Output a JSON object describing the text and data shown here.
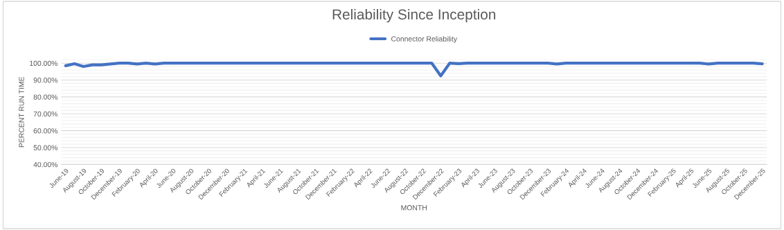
{
  "chart_data": {
    "type": "line",
    "title": "Reliability Since Inception",
    "xlabel": "MONTH",
    "ylabel": "PERCENT RUN TIME",
    "categories": [
      "June-19",
      null,
      "August-19",
      null,
      "October-19",
      null,
      "December-19",
      null,
      "February-20",
      null,
      "April-20",
      null,
      "June-20",
      null,
      "August-20",
      null,
      "October-20",
      null,
      "December-20",
      null,
      "February-21",
      null,
      "April-21",
      null,
      "June-21",
      null,
      "August-21",
      null,
      "October-21",
      null,
      "December-21",
      null,
      "February-22",
      null,
      "April-22",
      null,
      "June-22",
      null,
      "August-22",
      null,
      "October-22",
      null,
      "December-22",
      null,
      "February-23",
      null,
      "April-23",
      null,
      "June-23",
      null,
      "August-23",
      null,
      "October-23",
      null,
      "December-23",
      null,
      "February-24",
      null,
      "April-24",
      null,
      "June-24",
      null,
      "August-24",
      null,
      "October-24",
      null,
      "December-24",
      null,
      "February-25",
      null,
      "April-25",
      null,
      "June-25",
      null,
      "August-25",
      null,
      "October-25",
      null,
      "December-25"
    ],
    "series": [
      {
        "name": "Connector Reliability",
        "color": "#4472c4",
        "values": [
          98.5,
          99.7,
          98,
          99,
          99,
          99.5,
          100,
          100,
          99.5,
          100,
          99.5,
          100,
          100,
          100,
          100,
          100,
          100,
          100,
          100,
          100,
          100,
          100,
          100,
          100,
          100,
          100,
          100,
          100,
          100,
          100,
          100,
          100,
          100,
          100,
          100,
          100,
          100,
          100,
          100,
          100,
          100,
          100,
          92.5,
          100,
          99.7,
          100,
          100,
          100,
          100,
          100,
          100,
          100,
          100,
          100,
          100,
          99.5,
          100,
          100,
          100,
          100,
          100,
          100,
          100,
          100,
          100,
          100,
          100,
          100,
          100,
          100,
          100,
          100,
          99.5,
          100,
          100,
          100,
          100,
          100,
          99.6
        ]
      }
    ],
    "ylim": [
      40,
      102
    ],
    "yticks": [
      {
        "value": 40,
        "label": "40.00%"
      },
      {
        "value": 42,
        "label": null
      },
      {
        "value": 44,
        "label": null
      },
      {
        "value": 46,
        "label": null
      },
      {
        "value": 48,
        "label": null
      },
      {
        "value": 50,
        "label": "50.00%"
      },
      {
        "value": 52,
        "label": null
      },
      {
        "value": 54,
        "label": null
      },
      {
        "value": 56,
        "label": null
      },
      {
        "value": 58,
        "label": null
      },
      {
        "value": 60,
        "label": "60.00%"
      },
      {
        "value": 62,
        "label": null
      },
      {
        "value": 64,
        "label": null
      },
      {
        "value": 66,
        "label": null
      },
      {
        "value": 68,
        "label": null
      },
      {
        "value": 70,
        "label": "70.00%"
      },
      {
        "value": 72,
        "label": null
      },
      {
        "value": 74,
        "label": null
      },
      {
        "value": 76,
        "label": null
      },
      {
        "value": 78,
        "label": null
      },
      {
        "value": 80,
        "label": "80.00%"
      },
      {
        "value": 82,
        "label": null
      },
      {
        "value": 84,
        "label": null
      },
      {
        "value": 86,
        "label": null
      },
      {
        "value": 88,
        "label": null
      },
      {
        "value": 90,
        "label": "90.00%"
      },
      {
        "value": 92,
        "label": null
      },
      {
        "value": 94,
        "label": null
      },
      {
        "value": 96,
        "label": null
      },
      {
        "value": 98,
        "label": null
      },
      {
        "value": 100,
        "label": "100.00%"
      },
      {
        "value": 102,
        "label": null
      }
    ],
    "grid": "y",
    "legend": "top",
    "marker": "none",
    "line_style": "solid"
  }
}
